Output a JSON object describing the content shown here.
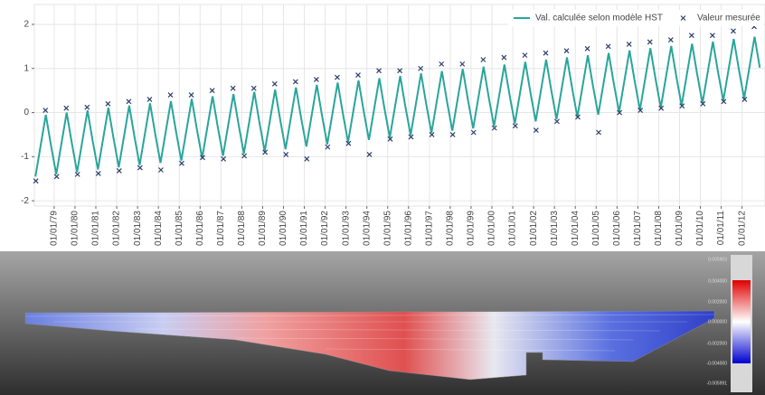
{
  "chart_data": {
    "type": "line",
    "xlim": [
      1978.05,
      2013.1
    ],
    "ylim": [
      -2.12,
      2.45
    ],
    "yticks": [
      -2,
      -1,
      0,
      1,
      2
    ],
    "xticks": [
      {
        "value": 1979,
        "label": "01/01/79"
      },
      {
        "value": 1980,
        "label": "01/01/80"
      },
      {
        "value": 1981,
        "label": "01/01/81"
      },
      {
        "value": 1982,
        "label": "01/01/82"
      },
      {
        "value": 1983,
        "label": "01/01/83"
      },
      {
        "value": 1984,
        "label": "01/01/84"
      },
      {
        "value": 1985,
        "label": "01/01/85"
      },
      {
        "value": 1986,
        "label": "01/01/86"
      },
      {
        "value": 1987,
        "label": "01/01/87"
      },
      {
        "value": 1988,
        "label": "01/01/88"
      },
      {
        "value": 1989,
        "label": "01/01/89"
      },
      {
        "value": 1990,
        "label": "01/01/90"
      },
      {
        "value": 1991,
        "label": "01/01/91"
      },
      {
        "value": 1992,
        "label": "01/01/92"
      },
      {
        "value": 1993,
        "label": "01/01/93"
      },
      {
        "value": 1994,
        "label": "01/01/94"
      },
      {
        "value": 1995,
        "label": "01/01/95"
      },
      {
        "value": 1996,
        "label": "01/01/96"
      },
      {
        "value": 1997,
        "label": "01/01/97"
      },
      {
        "value": 1998,
        "label": "01/01/98"
      },
      {
        "value": 1999,
        "label": "01/01/99"
      },
      {
        "value": 2000,
        "label": "01/01/00"
      },
      {
        "value": 2001,
        "label": "01/01/01"
      },
      {
        "value": 2002,
        "label": "01/01/02"
      },
      {
        "value": 2003,
        "label": "01/01/03"
      },
      {
        "value": 2004,
        "label": "01/01/04"
      },
      {
        "value": 2005,
        "label": "01/01/05"
      },
      {
        "value": 2006,
        "label": "01/01/06"
      },
      {
        "value": 2007,
        "label": "01/01/07"
      },
      {
        "value": 2008,
        "label": "01/01/08"
      },
      {
        "value": 2009,
        "label": "01/01/09"
      },
      {
        "value": 2010,
        "label": "01/01/10"
      },
      {
        "value": 2011,
        "label": "01/01/11"
      },
      {
        "value": 2012,
        "label": "01/01/12"
      }
    ],
    "grid": true,
    "legend": "top-right",
    "series": [
      {
        "name": "Val. calculée selon modèle HST",
        "type": "line",
        "color": "#2aa59b",
        "x": [
          1978.1,
          1978.35,
          1978.6,
          1978.85,
          1979.1,
          1979.35,
          1979.6,
          1979.85,
          1980.1,
          1980.35,
          1980.6,
          1980.85,
          1981.1,
          1981.35,
          1981.6,
          1981.85,
          1982.1,
          1982.35,
          1982.6,
          1982.85,
          1983.1,
          1983.35,
          1983.6,
          1983.85,
          1984.1,
          1984.35,
          1984.6,
          1984.85,
          1985.1,
          1985.35,
          1985.6,
          1985.85,
          1986.1,
          1986.35,
          1986.6,
          1986.85,
          1987.1,
          1987.35,
          1987.6,
          1987.85,
          1988.1,
          1988.35,
          1988.6,
          1988.85,
          1989.1,
          1989.35,
          1989.6,
          1989.85,
          1990.1,
          1990.35,
          1990.6,
          1990.85,
          1991.1,
          1991.35,
          1991.6,
          1991.85,
          1992.1,
          1992.35,
          1992.6,
          1992.85,
          1993.1,
          1993.35,
          1993.6,
          1993.85,
          1994.1,
          1994.35,
          1994.6,
          1994.85,
          1995.1,
          1995.35,
          1995.6,
          1995.85,
          1996.1,
          1996.35,
          1996.6,
          1996.85,
          1997.1,
          1997.35,
          1997.6,
          1997.85,
          1998.1,
          1998.35,
          1998.6,
          1998.85,
          1999.1,
          1999.35,
          1999.6,
          1999.85,
          2000.1,
          2000.35,
          2000.6,
          2000.85,
          2001.1,
          2001.35,
          2001.6,
          2001.85,
          2002.1,
          2002.35,
          2002.6,
          2002.85,
          2003.1,
          2003.35,
          2003.6,
          2003.85,
          2004.1,
          2004.35,
          2004.6,
          2004.85,
          2005.1,
          2005.35,
          2005.6,
          2005.85,
          2006.1,
          2006.35,
          2006.6,
          2006.85,
          2007.1,
          2007.35,
          2007.6,
          2007.85,
          2008.1,
          2008.35,
          2008.6,
          2008.85,
          2009.1,
          2009.35,
          2009.6,
          2009.85,
          2010.1,
          2010.35,
          2010.6,
          2010.85,
          2011.1,
          2011.35,
          2011.6,
          2011.85,
          2012.1,
          2012.35,
          2012.6,
          2012.85
        ],
        "values": [
          -1.45,
          -0.75,
          -0.05,
          -0.75,
          -1.4,
          -0.7,
          0,
          -0.7,
          -1.35,
          -0.65,
          0.05,
          -0.65,
          -1.29,
          -0.59,
          0.11,
          -0.59,
          -1.24,
          -0.54,
          0.16,
          -0.54,
          -1.19,
          -0.49,
          0.21,
          -0.49,
          -1.14,
          -0.44,
          0.26,
          -0.44,
          -1.09,
          -0.39,
          0.31,
          -0.39,
          -1.03,
          -0.33,
          0.37,
          -0.33,
          -0.98,
          -0.28,
          0.42,
          -0.28,
          -0.93,
          -0.23,
          0.47,
          -0.23,
          -0.88,
          -0.18,
          0.52,
          -0.18,
          -0.83,
          -0.13,
          0.57,
          -0.13,
          -0.77,
          -0.07,
          0.63,
          -0.07,
          -0.72,
          -0.02,
          0.68,
          -0.02,
          -0.67,
          0.03,
          0.73,
          0.03,
          -0.62,
          0.08,
          0.78,
          0.08,
          -0.57,
          0.13,
          0.83,
          0.13,
          -0.51,
          0.19,
          0.89,
          0.19,
          -0.46,
          0.24,
          0.94,
          0.24,
          -0.41,
          0.29,
          0.99,
          0.29,
          -0.36,
          0.34,
          1.04,
          0.34,
          -0.31,
          0.39,
          1.09,
          0.39,
          -0.25,
          0.45,
          1.15,
          0.45,
          -0.2,
          0.5,
          1.2,
          0.5,
          -0.15,
          0.55,
          1.25,
          0.55,
          -0.1,
          0.6,
          1.3,
          0.6,
          -0.05,
          0.65,
          1.35,
          0.65,
          0.01,
          0.71,
          1.41,
          0.71,
          0.06,
          0.76,
          1.46,
          0.76,
          0.11,
          0.81,
          1.51,
          0.81,
          0.16,
          0.86,
          1.56,
          0.86,
          0.21,
          0.91,
          1.61,
          0.91,
          0.27,
          0.97,
          1.67,
          0.97,
          0.32,
          1.02,
          1.72,
          1.02
        ]
      },
      {
        "name": "Valeur mesurée",
        "type": "scatter",
        "color": "#2c3e6e",
        "x": [
          1978.12,
          1978.58,
          1979.12,
          1979.58,
          1980.12,
          1980.58,
          1981.12,
          1981.58,
          1982.12,
          1982.58,
          1983.12,
          1983.58,
          1984.12,
          1984.58,
          1985.12,
          1985.58,
          1986.12,
          1986.58,
          1987.12,
          1987.58,
          1988.12,
          1988.58,
          1989.12,
          1989.58,
          1990.12,
          1990.58,
          1991.12,
          1991.58,
          1992.12,
          1992.58,
          1993.12,
          1993.58,
          1994.12,
          1994.58,
          1995.12,
          1995.58,
          1996.12,
          1996.58,
          1997.12,
          1997.58,
          1998.12,
          1998.58,
          1999.12,
          1999.58,
          2000.12,
          2000.58,
          2001.12,
          2001.58,
          2002.12,
          2002.58,
          2003.12,
          2003.58,
          2004.12,
          2004.58,
          2005.12,
          2005.58,
          2006.12,
          2006.58,
          2007.12,
          2007.58,
          2008.12,
          2008.58,
          2009.12,
          2009.58,
          2010.12,
          2010.58,
          2011.12,
          2011.58,
          2012.12,
          2012.58
        ],
        "values": [
          -1.55,
          0.05,
          -1.45,
          0.1,
          -1.4,
          0.12,
          -1.38,
          0.2,
          -1.32,
          0.25,
          -1.25,
          0.3,
          -1.3,
          0.4,
          -1.15,
          0.4,
          -1.02,
          0.5,
          -1.05,
          0.55,
          -0.98,
          0.55,
          -0.9,
          0.65,
          -0.95,
          0.7,
          -1.05,
          0.75,
          -0.78,
          0.8,
          -0.7,
          0.85,
          -0.95,
          0.95,
          -0.6,
          0.95,
          -0.55,
          1.0,
          -0.5,
          1.1,
          -0.5,
          1.1,
          -0.45,
          1.2,
          -0.35,
          1.25,
          -0.3,
          1.3,
          -0.4,
          1.35,
          -0.2,
          1.4,
          -0.1,
          1.45,
          -0.45,
          1.5,
          0.0,
          1.55,
          0.05,
          1.6,
          0.1,
          1.65,
          0.15,
          1.75,
          0.2,
          1.75,
          0.25,
          1.85,
          0.3,
          1.95
        ]
      }
    ]
  },
  "render": {
    "colorbar_labels": [
      "0.005903",
      "0.004000",
      "0.002000",
      "0.000000",
      "-0.002000",
      "-0.004000",
      "-0.005991"
    ]
  }
}
